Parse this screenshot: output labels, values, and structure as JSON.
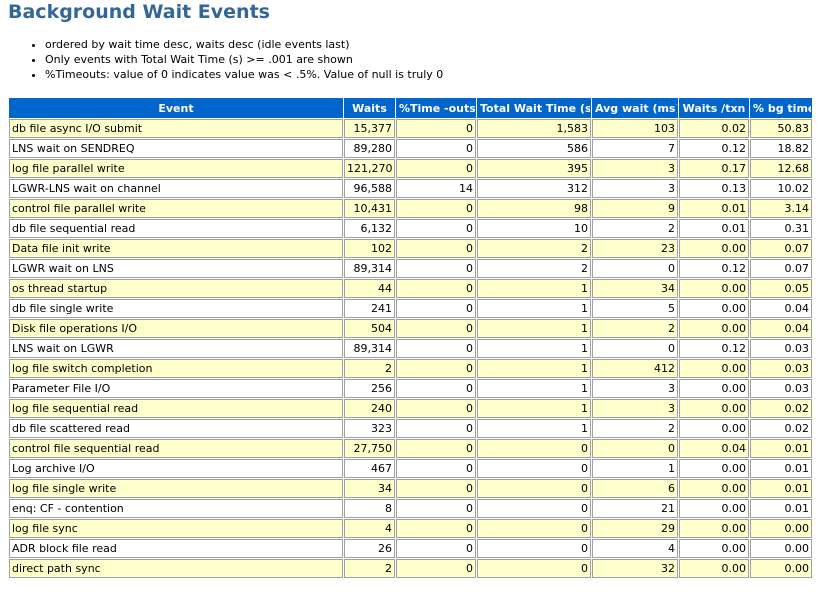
{
  "title": "Background Wait Events",
  "notes": [
    "ordered by wait time desc, waits desc (idle events last)",
    "Only events with Total Wait Time (s) >= .001 are shown",
    "%Timeouts: value of 0 indicates value was < .5%. Value of null is truly 0"
  ],
  "table": {
    "headers": [
      "Event",
      "Waits",
      "%Time -outs",
      "Total Wait Time (s)",
      "Avg wait (ms)",
      "Waits /txn",
      "% bg time"
    ],
    "rows": [
      [
        "db file async I/O submit",
        "15,377",
        "0",
        "1,583",
        "103",
        "0.02",
        "50.83"
      ],
      [
        "LNS wait on SENDREQ",
        "89,280",
        "0",
        "586",
        "7",
        "0.12",
        "18.82"
      ],
      [
        "log file parallel write",
        "121,270",
        "0",
        "395",
        "3",
        "0.17",
        "12.68"
      ],
      [
        "LGWR-LNS wait on channel",
        "96,588",
        "14",
        "312",
        "3",
        "0.13",
        "10.02"
      ],
      [
        "control file parallel write",
        "10,431",
        "0",
        "98",
        "9",
        "0.01",
        "3.14"
      ],
      [
        "db file sequential read",
        "6,132",
        "0",
        "10",
        "2",
        "0.01",
        "0.31"
      ],
      [
        "Data file init write",
        "102",
        "0",
        "2",
        "23",
        "0.00",
        "0.07"
      ],
      [
        "LGWR wait on LNS",
        "89,314",
        "0",
        "2",
        "0",
        "0.12",
        "0.07"
      ],
      [
        "os thread startup",
        "44",
        "0",
        "1",
        "34",
        "0.00",
        "0.05"
      ],
      [
        "db file single write",
        "241",
        "0",
        "1",
        "5",
        "0.00",
        "0.04"
      ],
      [
        "Disk file operations I/O",
        "504",
        "0",
        "1",
        "2",
        "0.00",
        "0.04"
      ],
      [
        "LNS wait on LGWR",
        "89,314",
        "0",
        "1",
        "0",
        "0.12",
        "0.03"
      ],
      [
        "log file switch completion",
        "2",
        "0",
        "1",
        "412",
        "0.00",
        "0.03"
      ],
      [
        "Parameter File I/O",
        "256",
        "0",
        "1",
        "3",
        "0.00",
        "0.03"
      ],
      [
        "log file sequential read",
        "240",
        "0",
        "1",
        "3",
        "0.00",
        "0.02"
      ],
      [
        "db file scattered read",
        "323",
        "0",
        "1",
        "2",
        "0.00",
        "0.02"
      ],
      [
        "control file sequential read",
        "27,750",
        "0",
        "0",
        "0",
        "0.04",
        "0.01"
      ],
      [
        "Log archive I/O",
        "467",
        "0",
        "0",
        "1",
        "0.00",
        "0.01"
      ],
      [
        "log file single write",
        "34",
        "0",
        "0",
        "6",
        "0.00",
        "0.01"
      ],
      [
        "enq: CF - contention",
        "8",
        "0",
        "0",
        "21",
        "0.00",
        "0.01"
      ],
      [
        "log file sync",
        "4",
        "0",
        "0",
        "29",
        "0.00",
        "0.00"
      ],
      [
        "ADR block file read",
        "26",
        "0",
        "0",
        "4",
        "0.00",
        "0.00"
      ],
      [
        "direct path sync",
        "2",
        "0",
        "0",
        "32",
        "0.00",
        "0.00"
      ]
    ]
  }
}
